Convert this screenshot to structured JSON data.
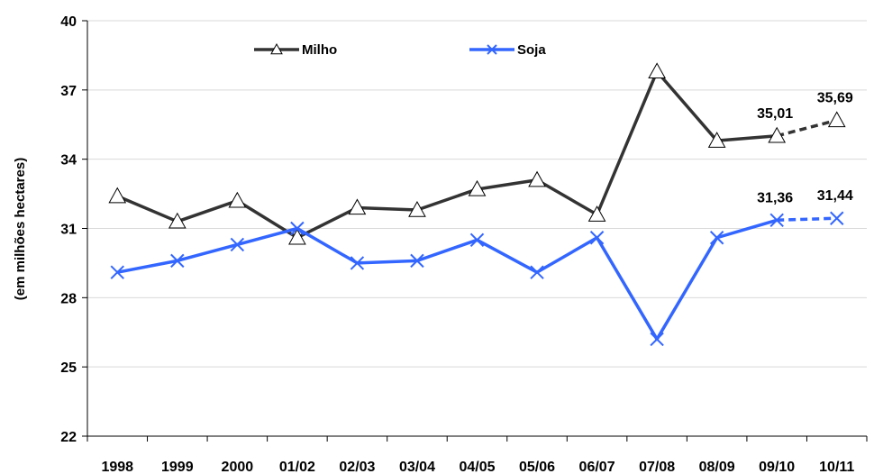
{
  "chart_data": {
    "type": "line",
    "categories": [
      "1998",
      "1999",
      "2000",
      "01/02",
      "02/03",
      "03/04",
      "04/05",
      "05/06",
      "06/07",
      "07/08",
      "08/09",
      "09/10",
      "10/11"
    ],
    "ylabel": "(em milhões hectares)",
    "xlabel": "",
    "title": "",
    "ylim": [
      22,
      40
    ],
    "yticks": [
      "22",
      "25",
      "28",
      "31",
      "34",
      "37",
      "40"
    ],
    "grid": "horizontal",
    "legend_position": "top-center",
    "series": [
      {
        "name": "Milho",
        "color": "#333333",
        "marker": "triangle",
        "values": [
          32.4,
          31.3,
          32.2,
          30.6,
          31.9,
          31.8,
          32.7,
          33.1,
          31.6,
          37.8,
          34.8,
          35.01,
          35.69
        ],
        "projected_from_index": 11,
        "labels": [
          {
            "index": 11,
            "text": "35,01"
          },
          {
            "index": 12,
            "text": "35,69"
          }
        ]
      },
      {
        "name": "Soja",
        "color": "#3366ff",
        "marker": "x",
        "values": [
          29.1,
          29.6,
          30.3,
          31.0,
          29.5,
          29.6,
          30.5,
          29.1,
          30.6,
          26.2,
          30.6,
          31.36,
          31.44
        ],
        "projected_from_index": 11,
        "labels": [
          {
            "index": 11,
            "text": "31,36"
          },
          {
            "index": 12,
            "text": "31,44"
          }
        ]
      }
    ]
  }
}
